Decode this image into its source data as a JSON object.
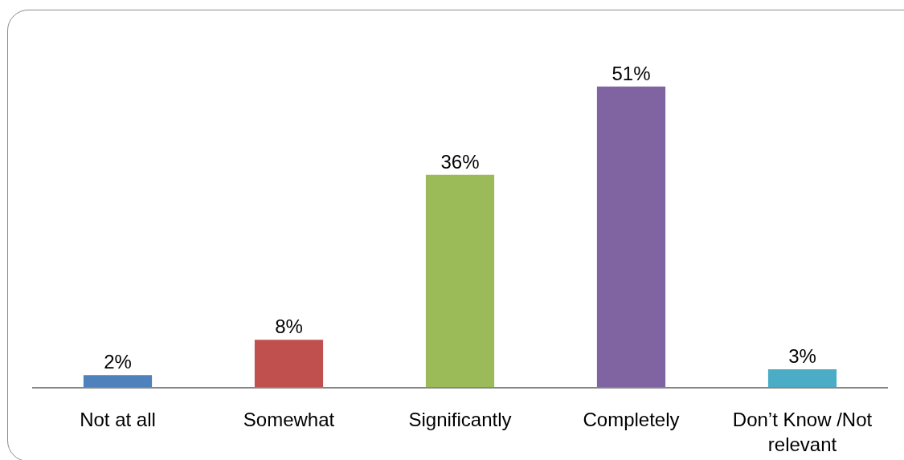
{
  "chart_data": {
    "type": "bar",
    "categories": [
      "Not at all",
      "Somewhat",
      "Significantly",
      "Completely",
      "Don’t Know /Not relevant"
    ],
    "values": [
      2,
      8,
      36,
      51,
      3
    ],
    "colors": [
      "#4f81bd",
      "#c0504d",
      "#9bbb59",
      "#8064a2",
      "#4bacc6"
    ],
    "value_labels": [
      "2%",
      "8%",
      "36%",
      "51%",
      "3%"
    ],
    "tick_labels": "x"
  }
}
